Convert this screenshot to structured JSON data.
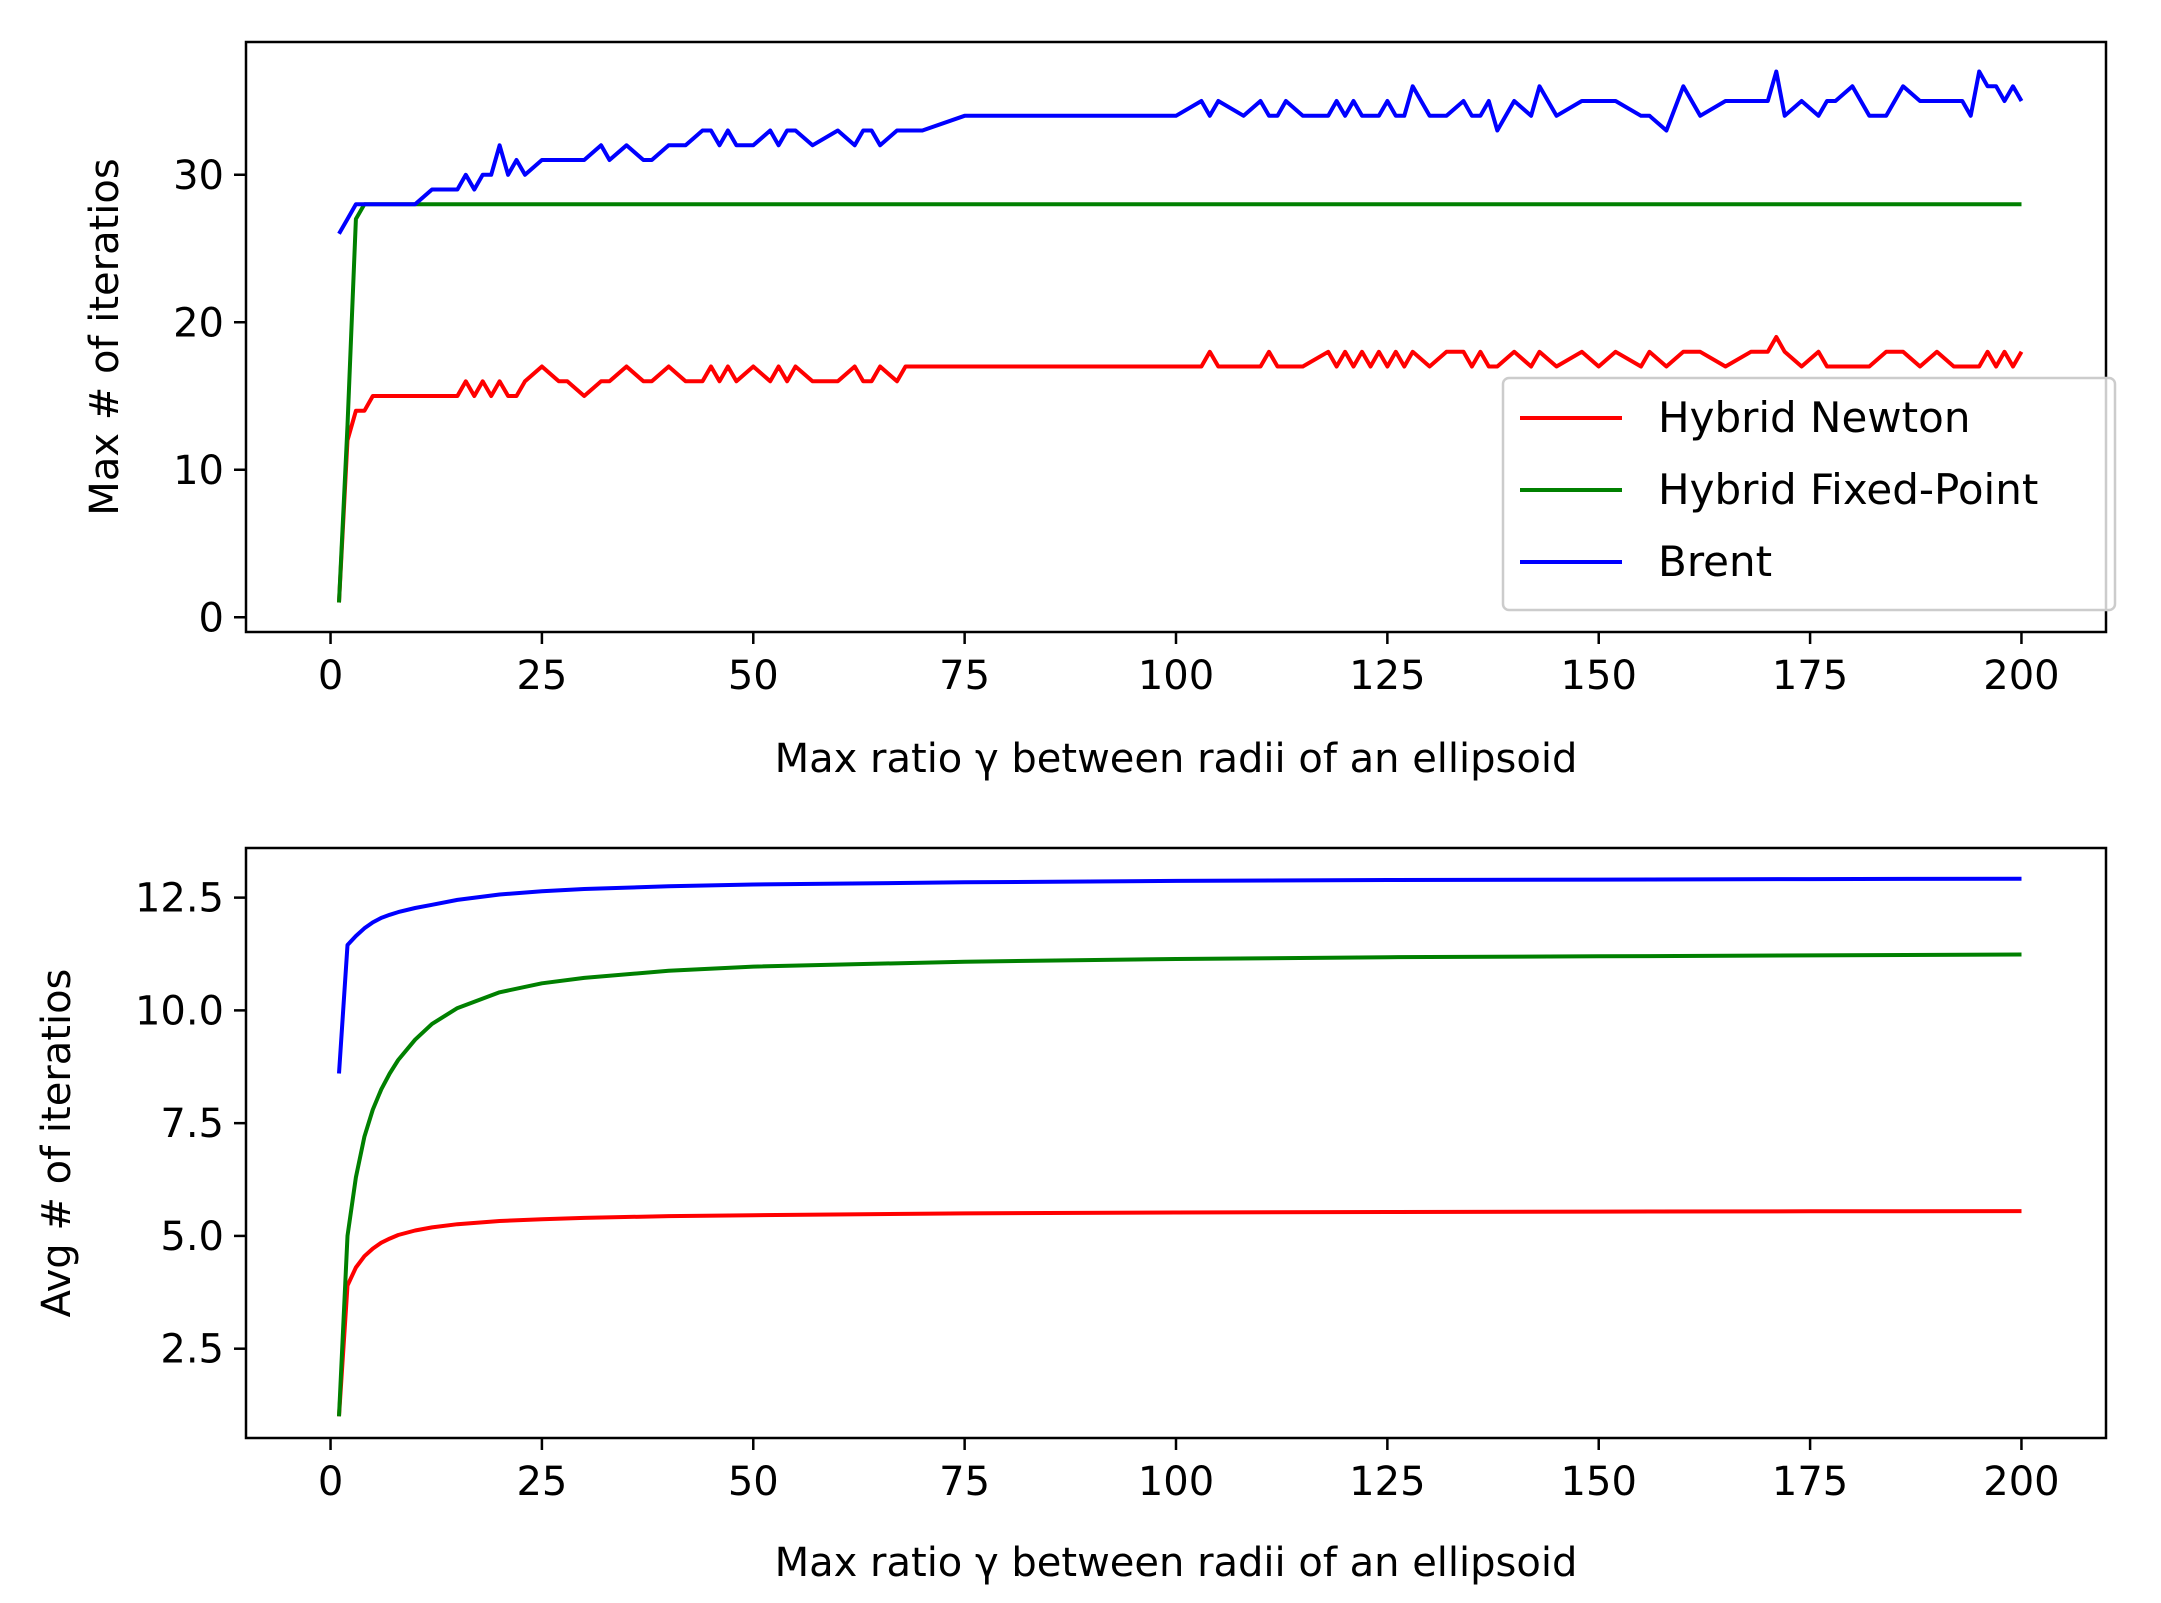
{
  "chart_data": [
    {
      "type": "line",
      "xlabel": "Max ratio γ between radii of an ellipsoid",
      "ylabel": "Max # of iteratios",
      "xlim": [
        -10,
        210
      ],
      "ylim": [
        -1,
        39
      ],
      "xticks": [
        0,
        25,
        50,
        75,
        100,
        125,
        150,
        175,
        200
      ],
      "xtick_labels": [
        "0",
        "25",
        "50",
        "75",
        "100",
        "125",
        "150",
        "175",
        "200"
      ],
      "yticks": [
        0,
        10,
        20,
        30
      ],
      "ytick_labels": [
        "0",
        "10",
        "20",
        "30"
      ],
      "legend": {
        "position": "lower-right",
        "entries": [
          "Hybrid Newton",
          "Hybrid Fixed-Point",
          "Brent"
        ]
      },
      "x": [
        1,
        2,
        3,
        4,
        5,
        6,
        8,
        10,
        12,
        14,
        15,
        16,
        17,
        18,
        19,
        20,
        21,
        22,
        23,
        25,
        27,
        28,
        30,
        32,
        33,
        35,
        37,
        38,
        40,
        42,
        44,
        45,
        46,
        47,
        48,
        50,
        52,
        53,
        54,
        55,
        57,
        60,
        62,
        63,
        64,
        65,
        67,
        68,
        70,
        75,
        80,
        85,
        90,
        95,
        100,
        103,
        104,
        105,
        108,
        110,
        111,
        112,
        113,
        115,
        118,
        119,
        120,
        121,
        122,
        123,
        124,
        125,
        126,
        127,
        128,
        130,
        132,
        134,
        135,
        136,
        137,
        138,
        140,
        142,
        143,
        145,
        148,
        150,
        152,
        155,
        156,
        158,
        160,
        162,
        165,
        168,
        170,
        171,
        172,
        174,
        176,
        177,
        178,
        180,
        182,
        184,
        186,
        188,
        190,
        192,
        193,
        194,
        195,
        196,
        197,
        198,
        199,
        200
      ],
      "series": [
        {
          "name": "Hybrid Newton",
          "color": "#ff0000",
          "values": [
            1,
            12,
            14,
            14,
            15,
            15,
            15,
            15,
            15,
            15,
            15,
            16,
            15,
            16,
            15,
            16,
            15,
            15,
            16,
            17,
            16,
            16,
            15,
            16,
            16,
            17,
            16,
            16,
            17,
            16,
            16,
            17,
            16,
            17,
            16,
            17,
            16,
            17,
            16,
            17,
            16,
            16,
            17,
            16,
            16,
            17,
            16,
            17,
            17,
            17,
            17,
            17,
            17,
            17,
            17,
            17,
            18,
            17,
            17,
            17,
            18,
            17,
            17,
            17,
            18,
            17,
            18,
            17,
            18,
            17,
            18,
            17,
            18,
            17,
            18,
            17,
            18,
            18,
            17,
            18,
            17,
            17,
            18,
            17,
            18,
            17,
            18,
            17,
            18,
            17,
            18,
            17,
            18,
            18,
            17,
            18,
            18,
            19,
            18,
            17,
            18,
            17,
            17,
            17,
            17,
            18,
            18,
            17,
            18,
            17,
            17,
            17,
            17,
            18,
            17,
            18,
            17,
            18
          ]
        },
        {
          "name": "Hybrid Fixed-Point",
          "color": "#008000",
          "values": [
            1,
            13,
            27,
            28,
            28,
            28,
            28,
            28,
            28,
            28,
            28,
            28,
            28,
            28,
            28,
            28,
            28,
            28,
            28,
            28,
            28,
            28,
            28,
            28,
            28,
            28,
            28,
            28,
            28,
            28,
            28,
            28,
            28,
            28,
            28,
            28,
            28,
            28,
            28,
            28,
            28,
            28,
            28,
            28,
            28,
            28,
            28,
            28,
            28,
            28,
            28,
            28,
            28,
            28,
            28,
            28,
            28,
            28,
            28,
            28,
            28,
            28,
            28,
            28,
            28,
            28,
            28,
            28,
            28,
            28,
            28,
            28,
            28,
            28,
            28,
            28,
            28,
            28,
            28,
            28,
            28,
            28,
            28,
            28,
            28,
            28,
            28,
            28,
            28,
            28,
            28,
            28,
            28,
            28,
            28,
            28,
            28,
            28,
            28,
            28,
            28,
            28,
            28,
            28,
            28,
            28,
            28,
            28,
            28,
            28,
            28,
            28,
            28,
            28,
            28,
            28,
            28,
            28
          ]
        },
        {
          "name": "Brent",
          "color": "#0000ff",
          "values": [
            26,
            27,
            28,
            28,
            28,
            28,
            28,
            28,
            29,
            29,
            29,
            30,
            29,
            30,
            30,
            32,
            30,
            31,
            30,
            31,
            31,
            31,
            31,
            32,
            31,
            32,
            31,
            31,
            32,
            32,
            33,
            33,
            32,
            33,
            32,
            32,
            33,
            32,
            33,
            33,
            32,
            33,
            32,
            33,
            33,
            32,
            33,
            33,
            33,
            34,
            34,
            34,
            34,
            34,
            34,
            35,
            34,
            35,
            34,
            35,
            34,
            34,
            35,
            34,
            34,
            35,
            34,
            35,
            34,
            34,
            34,
            35,
            34,
            34,
            36,
            34,
            34,
            35,
            34,
            34,
            35,
            33,
            35,
            34,
            36,
            34,
            35,
            35,
            35,
            34,
            34,
            33,
            36,
            34,
            35,
            35,
            35,
            37,
            34,
            35,
            34,
            35,
            35,
            36,
            34,
            34,
            36,
            35,
            35,
            35,
            35,
            34,
            37,
            36,
            36,
            35,
            36,
            35
          ]
        }
      ]
    },
    {
      "type": "line",
      "xlabel": "Max ratio γ between radii of an ellipsoid",
      "ylabel": "Avg # of iteratios",
      "xlim": [
        -10,
        210
      ],
      "ylim": [
        0.52,
        13.6
      ],
      "xticks": [
        0,
        25,
        50,
        75,
        100,
        125,
        150,
        175,
        200
      ],
      "xtick_labels": [
        "0",
        "25",
        "50",
        "75",
        "100",
        "125",
        "150",
        "175",
        "200"
      ],
      "yticks": [
        2.5,
        5.0,
        7.5,
        10.0,
        12.5
      ],
      "ytick_labels": [
        "2.5",
        "5.0",
        "7.5",
        "10.0",
        "12.5"
      ],
      "x": [
        1,
        2,
        3,
        4,
        5,
        6,
        7,
        8,
        10,
        12,
        15,
        20,
        25,
        30,
        40,
        50,
        75,
        100,
        125,
        150,
        175,
        200
      ],
      "series": [
        {
          "name": "Hybrid Newton",
          "color": "#ff0000",
          "values": [
            1.0,
            3.9,
            4.3,
            4.55,
            4.72,
            4.85,
            4.94,
            5.02,
            5.12,
            5.19,
            5.26,
            5.33,
            5.37,
            5.4,
            5.44,
            5.46,
            5.5,
            5.52,
            5.53,
            5.54,
            5.545,
            5.55
          ]
        },
        {
          "name": "Hybrid Fixed-Point",
          "color": "#008000",
          "values": [
            1.0,
            5.0,
            6.3,
            7.2,
            7.8,
            8.25,
            8.6,
            8.9,
            9.35,
            9.7,
            10.05,
            10.4,
            10.6,
            10.72,
            10.88,
            10.97,
            11.08,
            11.14,
            11.18,
            11.2,
            11.22,
            11.24
          ]
        },
        {
          "name": "Brent",
          "color": "#0000ff",
          "values": [
            8.6,
            11.45,
            11.65,
            11.82,
            11.95,
            12.05,
            12.12,
            12.18,
            12.27,
            12.34,
            12.45,
            12.57,
            12.64,
            12.69,
            12.75,
            12.79,
            12.84,
            12.87,
            12.89,
            12.9,
            12.91,
            12.92
          ]
        }
      ]
    }
  ]
}
